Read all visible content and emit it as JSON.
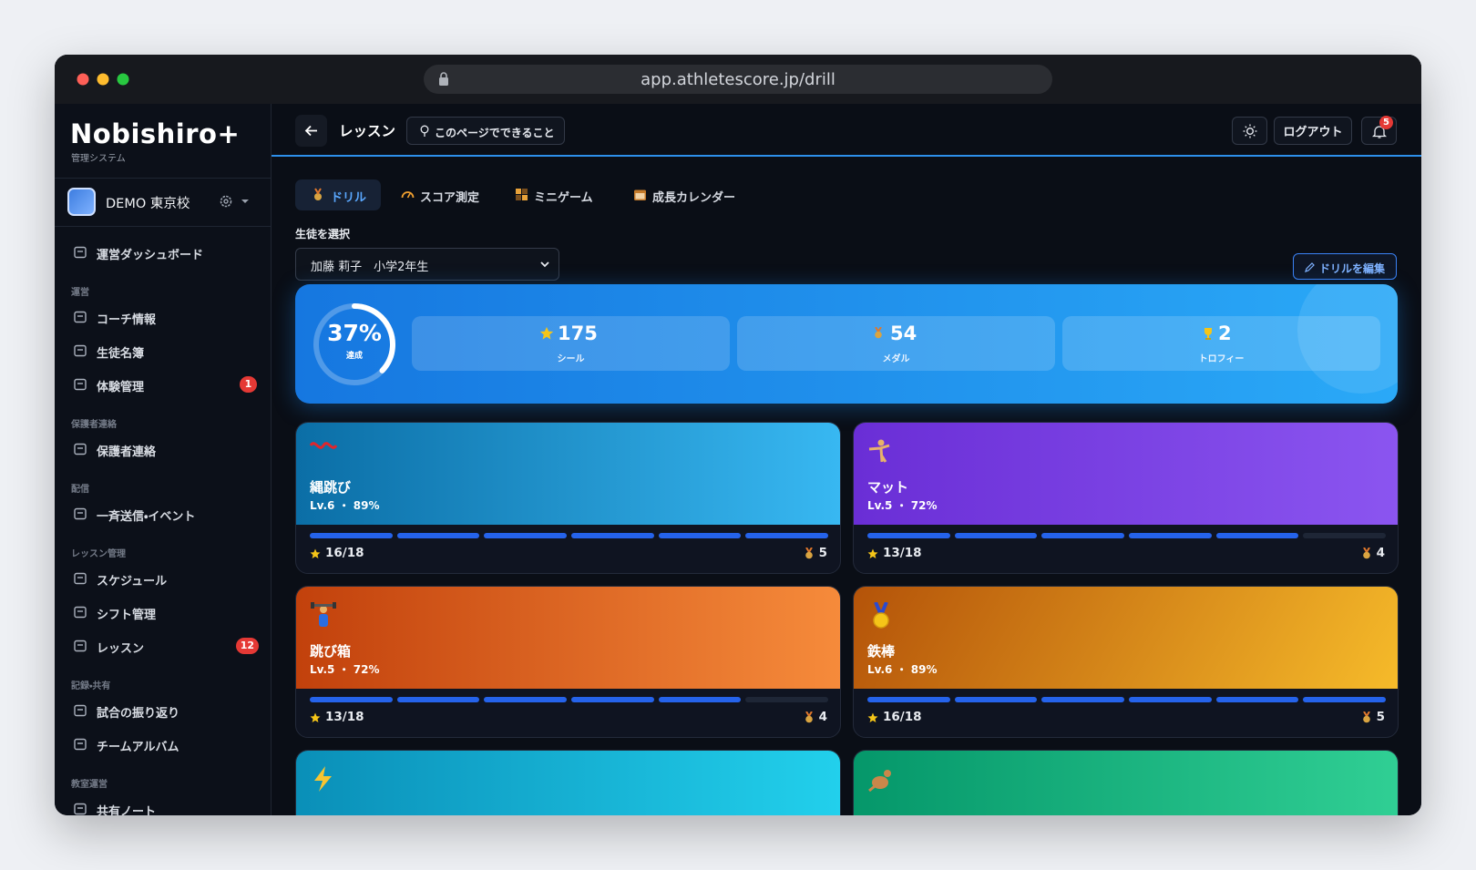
{
  "browser": {
    "url": "app.athletescore.jp/drill"
  },
  "sidebar": {
    "brand": "Nobishiro+",
    "system": "管理システム",
    "school": "DEMO 東京校",
    "nav": [
      {
        "label": "運営ダッシュボード"
      },
      {
        "section": "運営"
      },
      {
        "label": "コーチ情報"
      },
      {
        "label": "生徒名簿"
      },
      {
        "label": "体験管理",
        "badge": 1
      },
      {
        "section": "保護者連絡"
      },
      {
        "label": "保護者連絡"
      },
      {
        "section": "配信"
      },
      {
        "label": "一斉送信・イベント"
      },
      {
        "section": "レッスン管理"
      },
      {
        "label": "スケジュール"
      },
      {
        "label": "シフト管理"
      },
      {
        "label": "レッスン",
        "badge": 12
      },
      {
        "section": "記録・共有"
      },
      {
        "label": "試合の振り返り"
      },
      {
        "label": "チームアルバム"
      },
      {
        "section": "教室運営"
      },
      {
        "label": "共有ノート"
      }
    ]
  },
  "header": {
    "title": "レッスン",
    "help": "このページでできること",
    "logout": "ログアウト",
    "notifications": 5
  },
  "tabs": [
    "ドリル",
    "スコア測定",
    "ミニゲーム",
    "成長カレンダー"
  ],
  "active_tab": 0,
  "student": {
    "label": "生徒を選択",
    "selected": "加藤 莉子　小学2年生"
  },
  "edit": "ドリルを編集",
  "summary": {
    "progress": {
      "value": 37,
      "label": "37%"
    },
    "progress_caption": "達成",
    "colors": [
      "#1677e0",
      "#2aa9f7"
    ],
    "stats": [
      {
        "value": 175,
        "label": "シール"
      },
      {
        "value": 54,
        "label": "メダル"
      },
      {
        "value": 2,
        "label": "トロフィー"
      }
    ]
  },
  "drills": [
    {
      "name": "縄跳び",
      "level": "Lv.6 ・ 89%",
      "stars": "16/18",
      "medals": 5,
      "filled": 6,
      "segments": 6,
      "colors": [
        "#0b6ea6",
        "#38b8f2"
      ]
    },
    {
      "name": "マット",
      "level": "Lv.5 ・ 72%",
      "stars": "13/18",
      "medals": 4,
      "filled": 5,
      "segments": 6,
      "colors": [
        "#6a2ed6",
        "#8b55f0"
      ]
    },
    {
      "name": "跳び箱",
      "level": "Lv.5 ・ 72%",
      "stars": "13/18",
      "medals": 4,
      "filled": 5,
      "segments": 6,
      "colors": [
        "#c2410c",
        "#f68b3b"
      ]
    },
    {
      "name": "鉄棒",
      "level": "Lv.6 ・ 89%",
      "stars": "16/18",
      "medals": 5,
      "filled": 6,
      "segments": 6,
      "colors": [
        "#b45309",
        "#f6bb2a"
      ]
    },
    {
      "colors": [
        "#0a8fb8",
        "#22d0ec"
      ]
    },
    {
      "colors": [
        "#05976a",
        "#30cf94"
      ]
    }
  ]
}
